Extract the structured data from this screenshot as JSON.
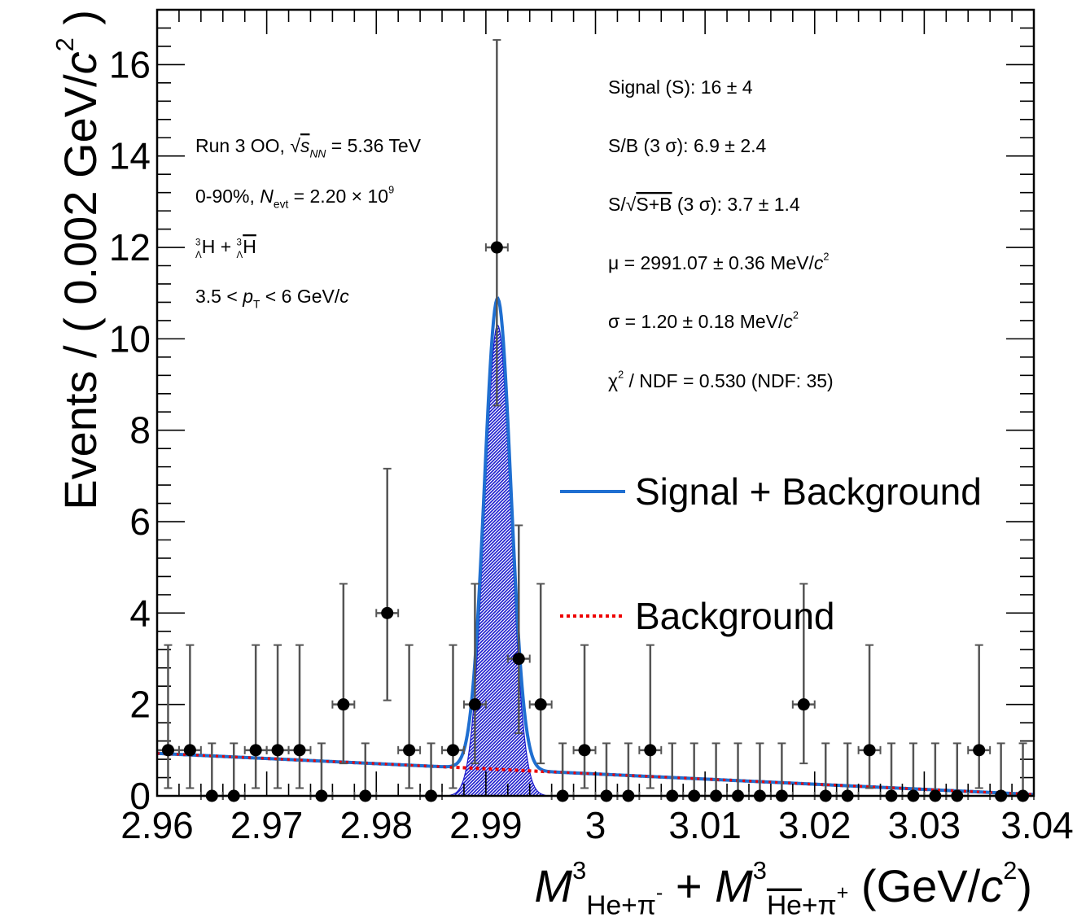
{
  "chart_data": {
    "type": "scatter",
    "title": "",
    "xlabel": {
      "parts": [
        {
          "text": "M",
          "italic": true
        },
        {
          "text": "3",
          "sup": true
        },
        {
          "text": "He+π",
          "sub": true
        },
        {
          "text": "-",
          "subsup": true
        },
        {
          "text": " + "
        },
        {
          "text": "M",
          "italic": true
        },
        {
          "text": "3",
          "sup": true
        },
        {
          "text": "He",
          "sub": true,
          "overline": true
        },
        {
          "text": "+π",
          "sub": true
        },
        {
          "text": "+",
          "subsup": true
        },
        {
          "text": " (GeV/"
        },
        {
          "text": "c",
          "italic": true
        },
        {
          "text": "2",
          "sup": true
        },
        {
          "text": ")"
        }
      ]
    },
    "ylabel": {
      "parts": [
        {
          "text": "Events / ( 0.002 GeV/"
        },
        {
          "text": "c",
          "italic": true
        },
        {
          "text": "2",
          "sup": true
        },
        {
          "text": " )"
        }
      ]
    },
    "xlim": [
      2.96,
      3.04
    ],
    "ylim": [
      0,
      17.2
    ],
    "x_ticks": [
      {
        "value": 2.96,
        "label": "2.96"
      },
      {
        "value": 2.97,
        "label": "2.97"
      },
      {
        "value": 2.98,
        "label": "2.98"
      },
      {
        "value": 2.99,
        "label": "2.99"
      },
      {
        "value": 3.0,
        "label": "3"
      },
      {
        "value": 3.01,
        "label": "3.01"
      },
      {
        "value": 3.02,
        "label": "3.02"
      },
      {
        "value": 3.03,
        "label": "3.03"
      },
      {
        "value": 3.04,
        "label": "3.04"
      }
    ],
    "y_ticks": [
      {
        "value": 0,
        "label": "0"
      },
      {
        "value": 2,
        "label": "2"
      },
      {
        "value": 4,
        "label": "4"
      },
      {
        "value": 6,
        "label": "6"
      },
      {
        "value": 8,
        "label": "8"
      },
      {
        "value": 10,
        "label": "10"
      },
      {
        "value": 12,
        "label": "12"
      },
      {
        "value": 14,
        "label": "14"
      },
      {
        "value": 16,
        "label": "16"
      }
    ],
    "data_points": {
      "bin_half_width": 0.001,
      "x": [
        2.961,
        2.963,
        2.965,
        2.967,
        2.969,
        2.971,
        2.973,
        2.975,
        2.977,
        2.979,
        2.981,
        2.983,
        2.985,
        2.987,
        2.989,
        2.991,
        2.993,
        2.995,
        2.997,
        2.999,
        3.001,
        3.003,
        3.005,
        3.007,
        3.009,
        3.011,
        3.013,
        3.015,
        3.017,
        3.019,
        3.021,
        3.023,
        3.025,
        3.027,
        3.029,
        3.031,
        3.033,
        3.035,
        3.037,
        3.039
      ],
      "y": [
        1,
        1,
        0,
        0,
        1,
        1,
        1,
        0,
        2,
        0,
        4,
        1,
        0,
        1,
        2,
        12,
        3,
        2,
        0,
        1,
        0,
        0,
        1,
        0,
        0,
        0,
        0,
        0,
        0,
        2,
        0,
        0,
        1,
        0,
        0,
        0,
        0,
        1,
        0,
        0
      ],
      "err_up": [
        2.3,
        2.3,
        1.15,
        1.15,
        2.3,
        2.3,
        2.3,
        1.15,
        2.64,
        1.15,
        3.16,
        2.3,
        1.15,
        2.3,
        2.64,
        4.54,
        2.92,
        2.64,
        1.15,
        2.3,
        1.15,
        1.15,
        2.3,
        1.15,
        1.15,
        1.15,
        1.15,
        1.15,
        1.15,
        2.64,
        1.15,
        1.15,
        2.3,
        1.15,
        1.15,
        1.15,
        1.15,
        2.3,
        1.15,
        1.15
      ],
      "err_down": [
        0.83,
        0.83,
        0,
        0,
        0.83,
        0.83,
        0.83,
        0,
        1.29,
        0,
        1.91,
        0.83,
        0,
        0.83,
        1.29,
        3.46,
        1.63,
        1.29,
        0,
        0.83,
        0,
        0,
        0.83,
        0,
        0,
        0,
        0,
        0,
        0,
        1.29,
        0,
        0,
        0.83,
        0,
        0,
        0,
        0,
        0.83,
        0,
        0
      ]
    },
    "background_fit": {
      "name": "Background",
      "x": [
        2.96,
        3.04
      ],
      "y": [
        0.93,
        0.03
      ],
      "color": "#ee0000",
      "style": "dotted"
    },
    "signal_fit": {
      "name": "Signal + Background",
      "mu": 2.99107,
      "sigma": 0.0012,
      "peak_amplitude": 10.3,
      "color": "#1f6fd1",
      "fill_color": "#1a1acc"
    },
    "annotations_left": [
      {
        "parts": [
          {
            "text": "Run 3 OO, "
          },
          {
            "text": "√",
            "sqrt": true
          },
          {
            "text": "s",
            "italic": true,
            "overline": true
          },
          {
            "text": "NN",
            "sub": true,
            "italic": true
          },
          {
            "text": "  = 5.36 TeV"
          }
        ]
      },
      {
        "parts": [
          {
            "text": "0-90%, "
          },
          {
            "text": "N",
            "italic": true
          },
          {
            "text": "evt",
            "sub": true
          },
          {
            "text": " = 2.20 × 10"
          },
          {
            "text": "9",
            "sup": true
          }
        ]
      },
      {
        "parts": [
          {
            "text": "3",
            "presup": true
          },
          {
            "text": "Λ",
            "presub": true
          },
          {
            "text": "H + "
          },
          {
            "text": "3",
            "presup": true
          },
          {
            "text": "Λ",
            "presub": true
          },
          {
            "text": "H",
            "overline": true
          }
        ]
      },
      {
        "parts": [
          {
            "text": "3.5 < "
          },
          {
            "text": "p",
            "italic": true
          },
          {
            "text": "T",
            "sub": true
          },
          {
            "text": " < 6 GeV/"
          },
          {
            "text": "c",
            "italic": true
          }
        ]
      }
    ],
    "annotations_right": [
      {
        "parts": [
          {
            "text": "Signal (S): 16 ± 4"
          }
        ]
      },
      {
        "parts": [
          {
            "text": "S/B (3 σ): 6.9 ± 2.4"
          }
        ]
      },
      {
        "parts": [
          {
            "text": "S/√"
          },
          {
            "text": "S+B",
            "overline": true
          },
          {
            "text": "  (3 σ): 3.7 ± 1.4"
          }
        ]
      },
      {
        "parts": [
          {
            "text": "μ = 2991.07 ± 0.36 MeV/"
          },
          {
            "text": "c",
            "italic": true
          },
          {
            "text": "2",
            "sup": true
          }
        ]
      },
      {
        "parts": [
          {
            "text": "σ = 1.20 ± 0.18 MeV/"
          },
          {
            "text": "c",
            "italic": true
          },
          {
            "text": "2",
            "sup": true
          }
        ]
      },
      {
        "parts": [
          {
            "text": "χ"
          },
          {
            "text": "2",
            "sup": true
          },
          {
            "text": " / NDF = 0.530 (NDF: 35)"
          }
        ]
      }
    ],
    "legend": {
      "placement": "right",
      "entries": [
        {
          "label": "Signal + Background",
          "color": "#1f6fd1",
          "style": "solid"
        },
        {
          "label": "Background",
          "color": "#ee0000",
          "style": "dotted"
        }
      ]
    }
  }
}
